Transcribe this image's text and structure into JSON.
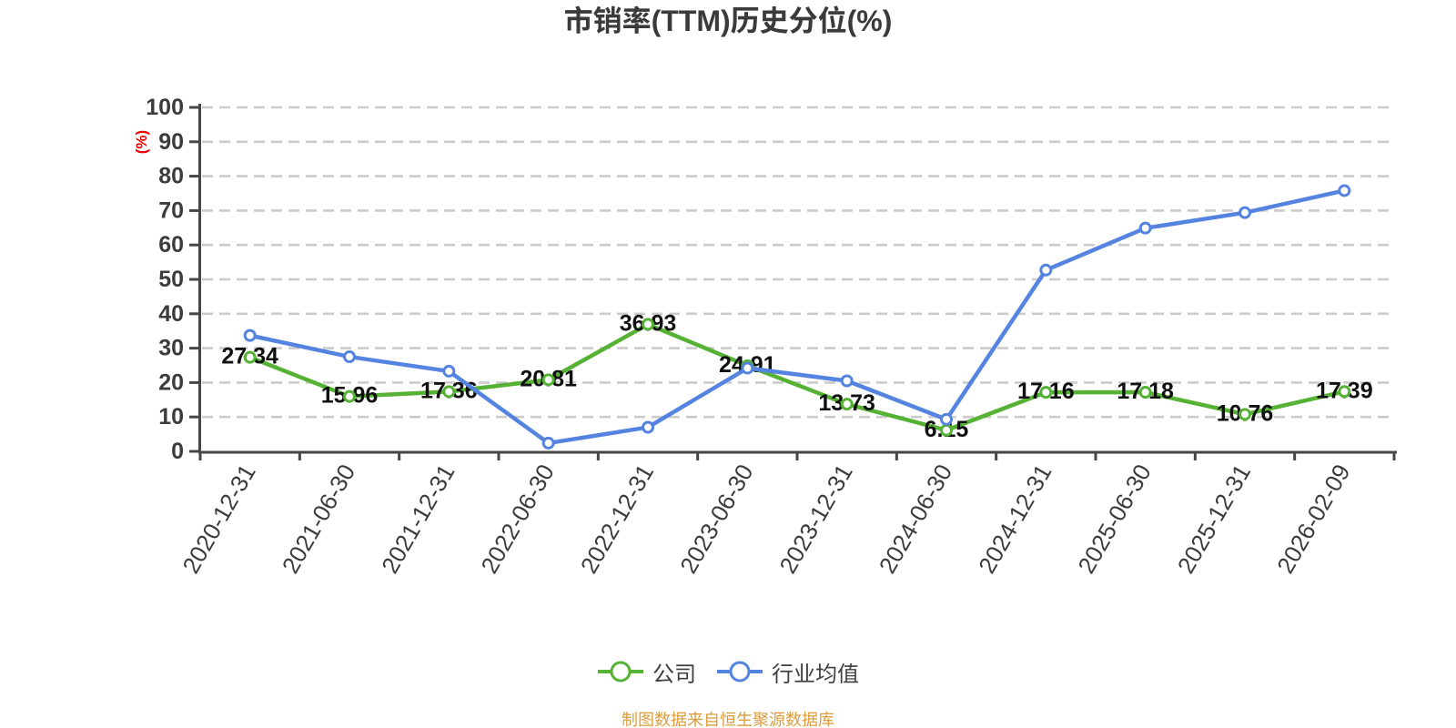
{
  "chart_data": {
    "type": "line",
    "title": "市销率(TTM)历史分位(%)",
    "ylabel": "(%)",
    "xlabel": "",
    "ylim": [
      0,
      100
    ],
    "y_ticks": [
      0,
      10,
      20,
      30,
      40,
      50,
      60,
      70,
      80,
      90,
      100
    ],
    "grid": "horizontal dashed",
    "legend_position": "bottom",
    "categories": [
      "2020-12-31",
      "2021-06-30",
      "2021-12-31",
      "2022-06-30",
      "2022-12-31",
      "2023-06-30",
      "2023-12-31",
      "2024-06-30",
      "2024-12-31",
      "2025-06-30",
      "2025-12-31",
      "2026-02-09"
    ],
    "series": [
      {
        "name": "公司",
        "color": "#56b234",
        "values": [
          27.34,
          15.96,
          17.36,
          20.81,
          36.93,
          24.91,
          13.73,
          6.15,
          17.16,
          17.18,
          10.76,
          17.39
        ],
        "show_labels": true
      },
      {
        "name": "行业均值",
        "color": "#5483e0",
        "values": [
          33.7,
          27.5,
          23.3,
          2.4,
          7.0,
          24.2,
          20.5,
          9.3,
          52.7,
          64.9,
          69.4,
          75.8
        ],
        "show_labels": false
      }
    ],
    "footer": "制图数据来自恒生聚源数据库",
    "colors": {
      "axis": "#464646",
      "grid": "#cbcbcb",
      "tick_label": "#3c3c3c",
      "data_label": "#101010",
      "title": "#3a3a3a",
      "y_unit": "#ee0000",
      "footer": "#db9c3d",
      "legend_text": "#404040",
      "background": "#ffffff"
    }
  }
}
